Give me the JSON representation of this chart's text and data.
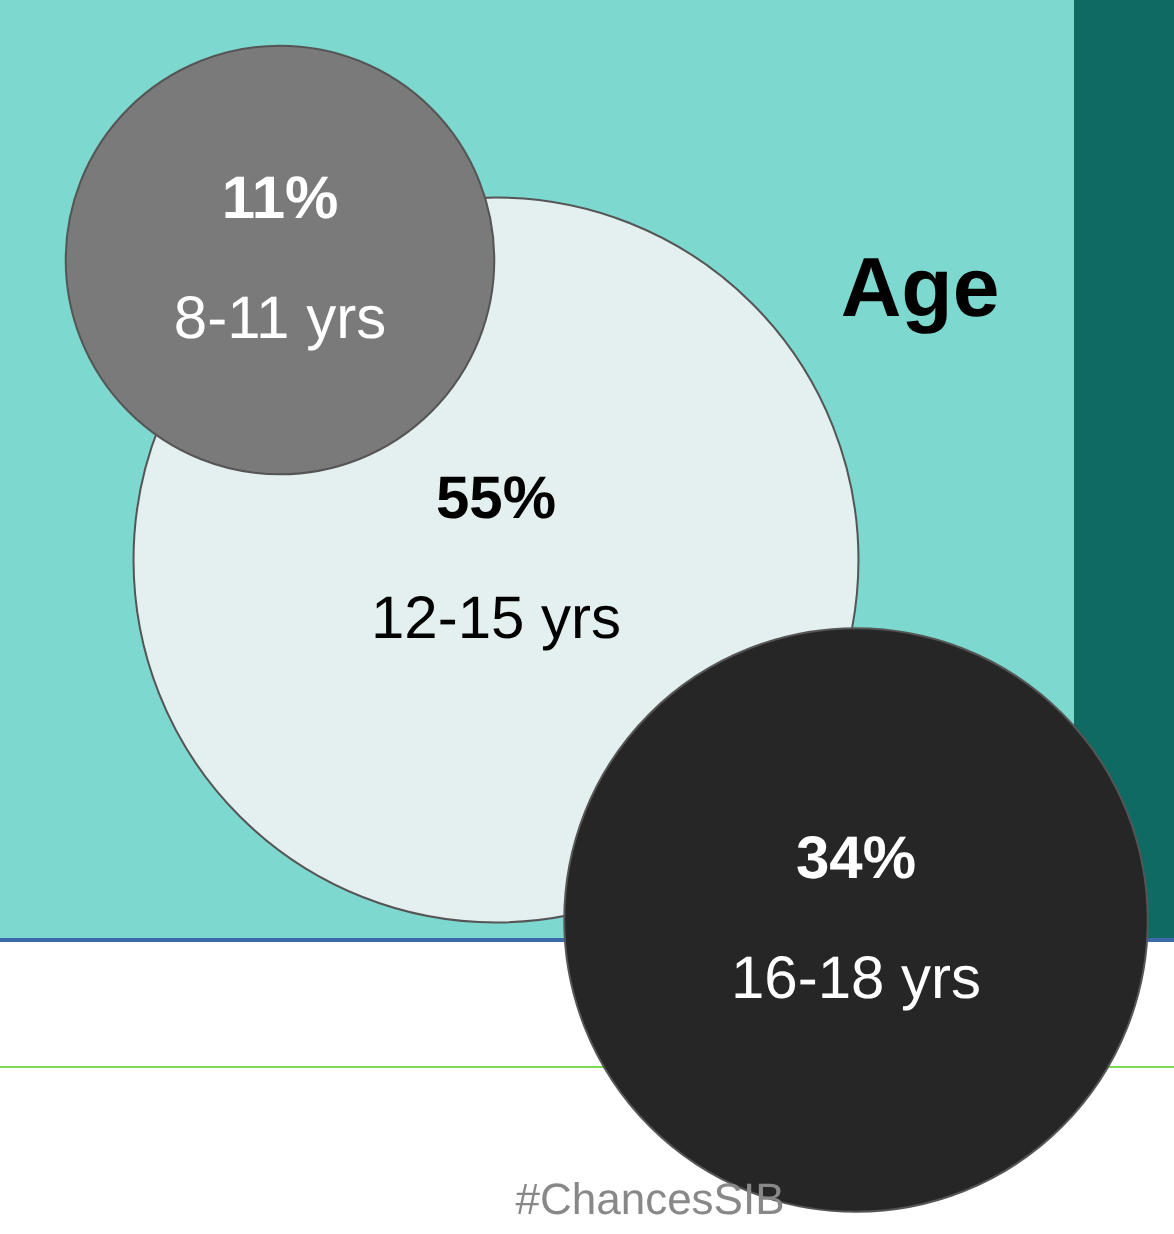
{
  "chart_data": {
    "type": "other",
    "title": "Age",
    "categories": [
      "8-11 yrs",
      "12-15 yrs",
      "16-18 yrs"
    ],
    "values": [
      11,
      55,
      34
    ],
    "value_labels": [
      "11%",
      "55%",
      "34%"
    ],
    "colors": [
      "#7a7a7a",
      "#e4efef",
      "#262626"
    ],
    "annotations": [
      "#ChancesSIB"
    ]
  }
}
